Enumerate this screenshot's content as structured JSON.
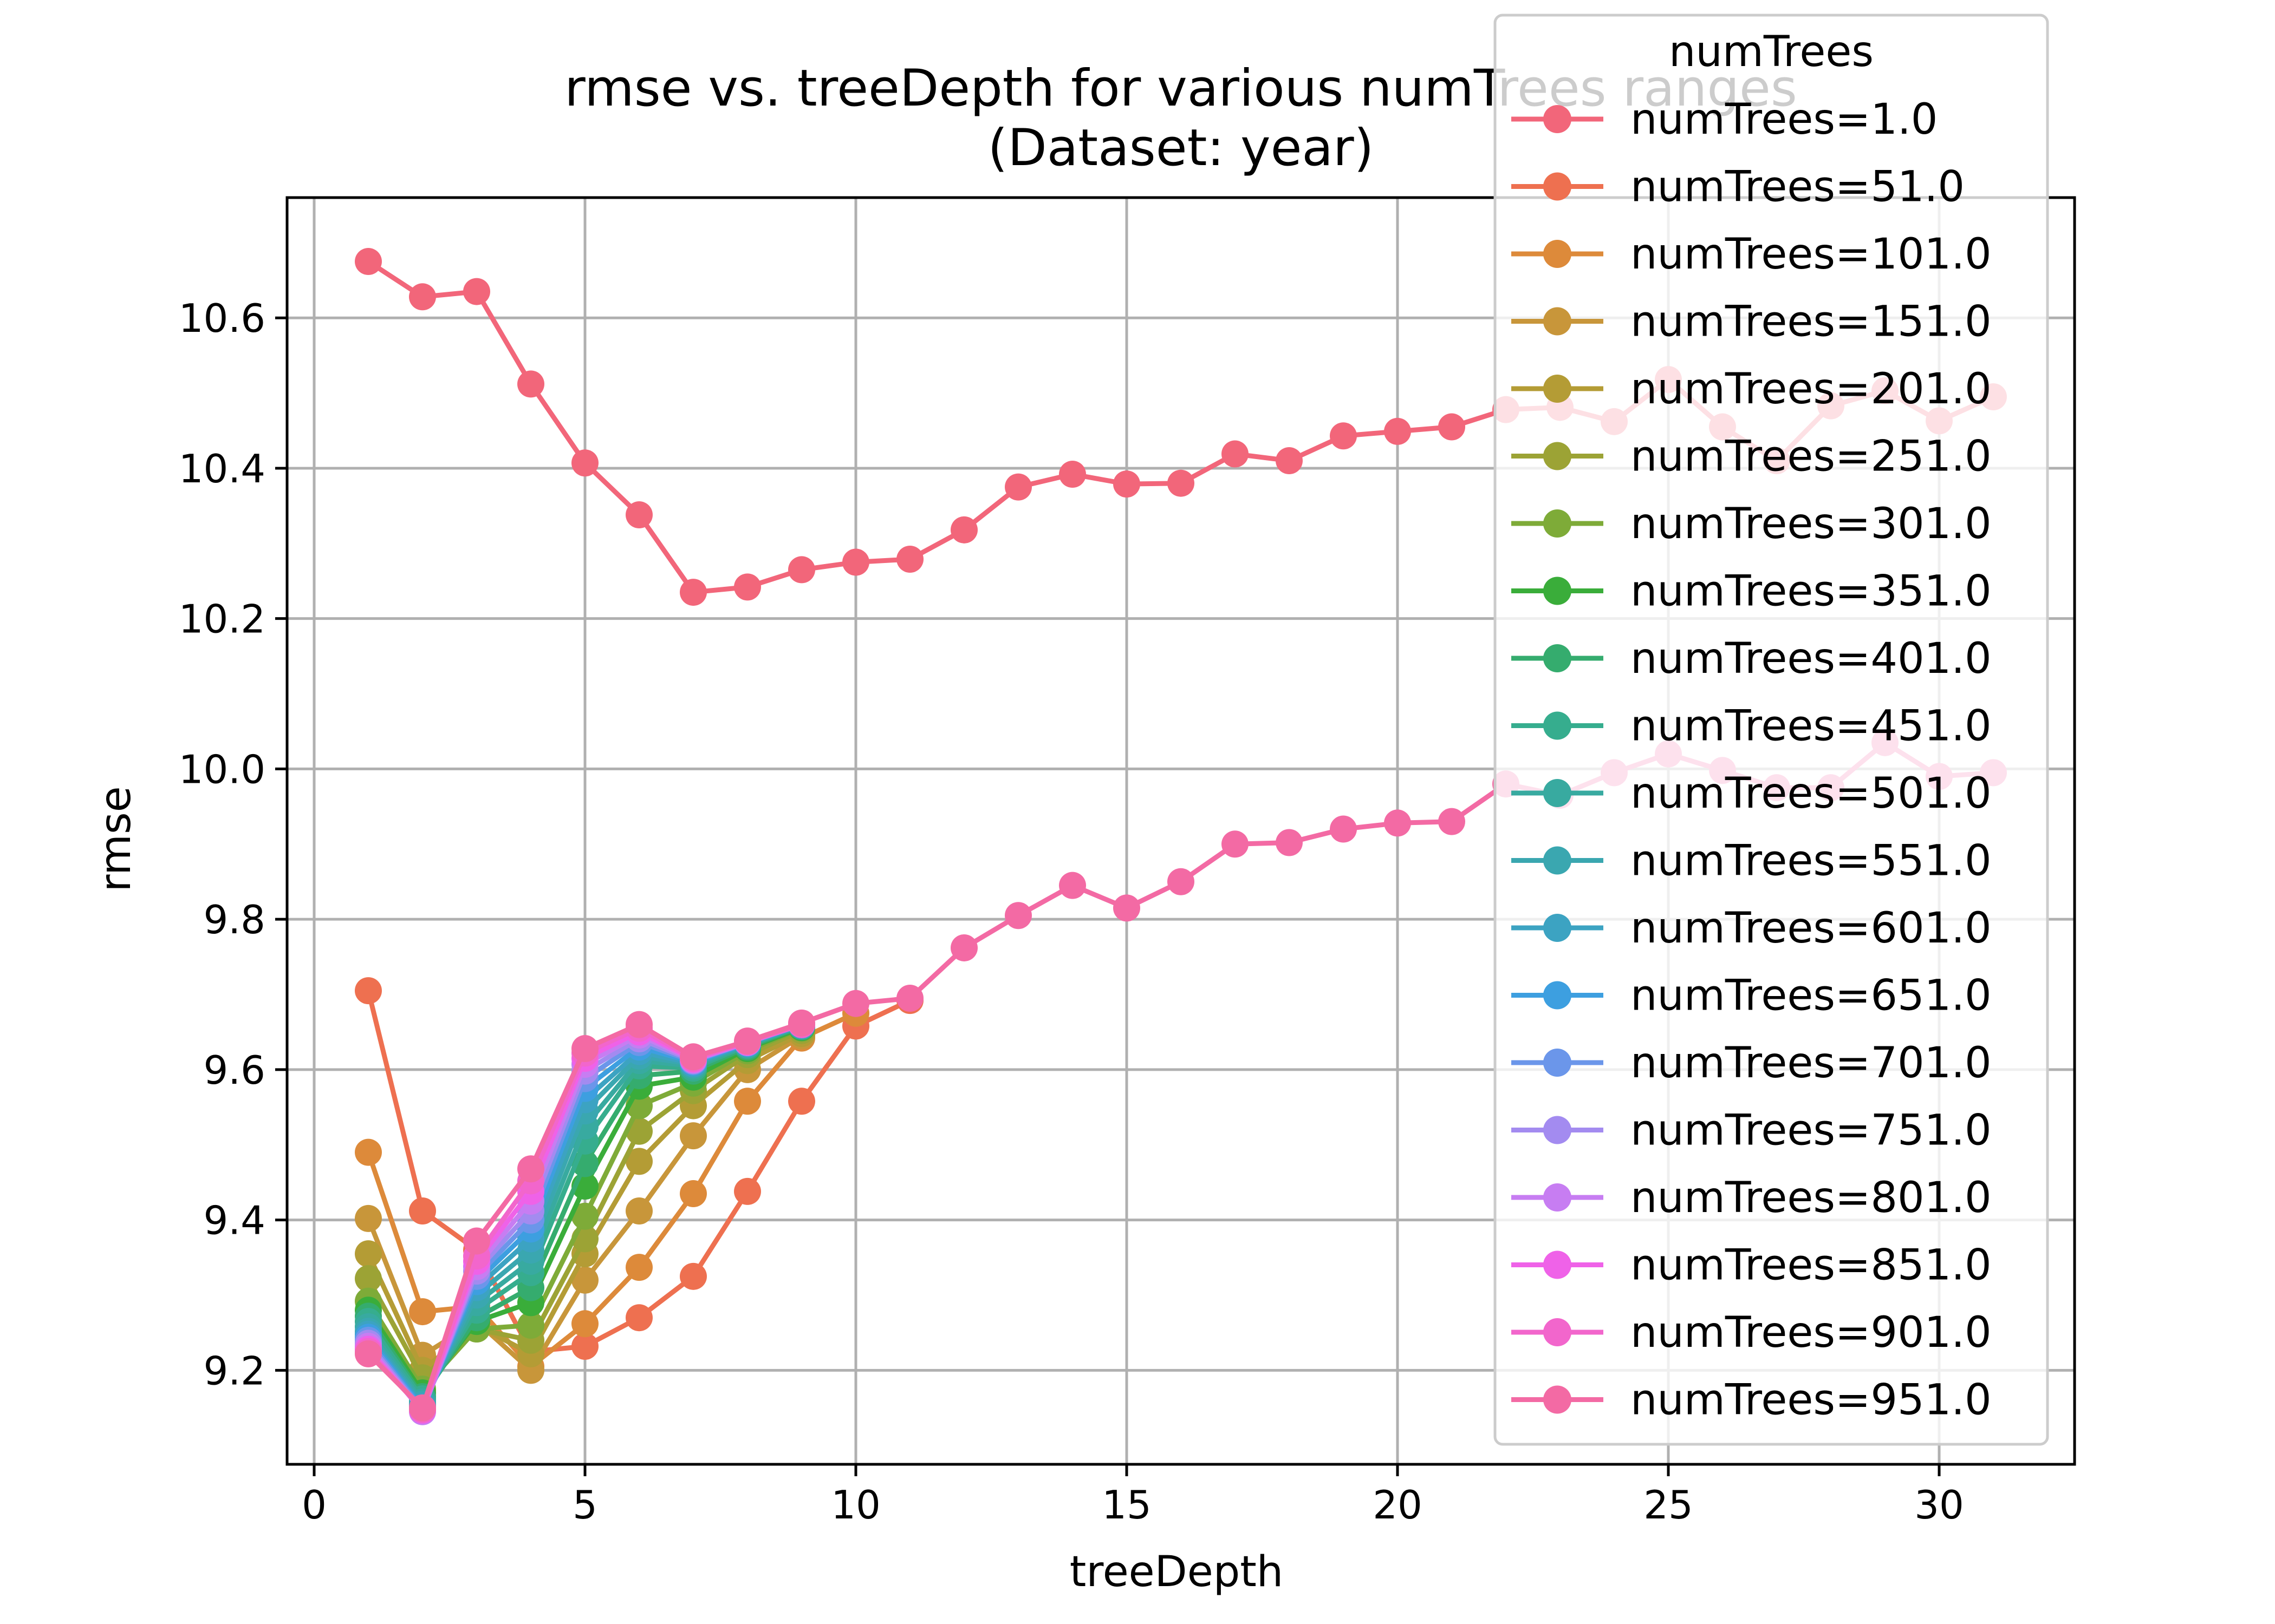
{
  "chart_data": {
    "type": "line",
    "title": "rmse vs. treeDepth for various numTrees ranges",
    "subtitle": "(Dataset: year)",
    "xlabel": "treeDepth",
    "ylabel": "rmse",
    "xlim": [
      -0.5,
      32.5
    ],
    "ylim": [
      9.075,
      10.76
    ],
    "xticks": [
      0,
      5,
      10,
      15,
      20,
      25,
      30
    ],
    "yticks": [
      9.2,
      9.4,
      9.6,
      9.8,
      10.0,
      10.2,
      10.4,
      10.6
    ],
    "ytick_labels": [
      "9.2",
      "9.4",
      "9.6",
      "9.8",
      "10.0",
      "10.2",
      "10.4",
      "10.6"
    ],
    "grid": true,
    "legend": {
      "title": "numTrees",
      "placement": "top-right"
    },
    "series": [
      {
        "name": "numTrees=1.0",
        "color": "#f2667a",
        "x": [
          1,
          2,
          3,
          4,
          5,
          6,
          7,
          8,
          9,
          10,
          11,
          12,
          13,
          14,
          15,
          16,
          17,
          18,
          19,
          20,
          21,
          22,
          23,
          24,
          25,
          26,
          27,
          28,
          29,
          30,
          31
        ],
        "y": [
          10.675,
          10.628,
          10.635,
          10.512,
          10.407,
          10.338,
          10.235,
          10.242,
          10.265,
          10.275,
          10.279,
          10.318,
          10.375,
          10.392,
          10.379,
          10.38,
          10.419,
          10.41,
          10.443,
          10.449,
          10.455,
          10.478,
          10.481,
          10.462,
          10.518,
          10.455,
          10.41,
          10.483,
          10.503,
          10.463,
          10.495
        ]
      },
      {
        "name": "numTrees=51.0",
        "color": "#ee7050",
        "x": [
          1,
          2,
          3,
          4,
          5,
          6,
          7,
          8,
          9,
          10,
          11
        ],
        "y": [
          9.705,
          9.412,
          9.36,
          9.225,
          9.232,
          9.27,
          9.325,
          9.438,
          9.558,
          9.658,
          9.692
        ]
      },
      {
        "name": "numTrees=101.0",
        "color": "#dd8a3a",
        "x": [
          1,
          2,
          3,
          4,
          5,
          6,
          7,
          8,
          9,
          10
        ],
        "y": [
          9.49,
          9.278,
          9.285,
          9.205,
          9.262,
          9.337,
          9.435,
          9.558,
          9.642,
          9.675
        ]
      },
      {
        "name": "numTrees=151.0",
        "color": "#c8963a",
        "x": [
          1,
          2,
          3,
          4,
          5,
          6,
          7,
          8,
          9
        ],
        "y": [
          9.402,
          9.22,
          9.265,
          9.2,
          9.32,
          9.412,
          9.512,
          9.6,
          9.645
        ]
      },
      {
        "name": "numTrees=201.0",
        "color": "#b49c35",
        "x": [
          1,
          2,
          3,
          4,
          5,
          6,
          7,
          8,
          9
        ],
        "y": [
          9.355,
          9.2,
          9.26,
          9.222,
          9.355,
          9.478,
          9.552,
          9.612,
          9.648
        ]
      },
      {
        "name": "numTrees=251.0",
        "color": "#9ca335",
        "x": [
          1,
          2,
          3,
          4,
          5,
          6,
          7,
          8,
          9
        ],
        "y": [
          9.322,
          9.19,
          9.255,
          9.24,
          9.375,
          9.518,
          9.572,
          9.62,
          9.652
        ]
      },
      {
        "name": "numTrees=301.0",
        "color": "#7eab38",
        "x": [
          1,
          2,
          3,
          4,
          5,
          6,
          7,
          8,
          9
        ],
        "y": [
          9.292,
          9.175,
          9.255,
          9.26,
          9.405,
          9.552,
          9.582,
          9.625,
          9.655
        ]
      },
      {
        "name": "numTrees=351.0",
        "color": "#3aad3a",
        "x": [
          1,
          2,
          3,
          4,
          5,
          6,
          7,
          8,
          9
        ],
        "y": [
          9.28,
          9.17,
          9.265,
          9.29,
          9.445,
          9.578,
          9.59,
          9.628,
          9.656
        ]
      },
      {
        "name": "numTrees=401.0",
        "color": "#35ac6e",
        "x": [
          1,
          2,
          3,
          4,
          5,
          6,
          7,
          8,
          9
        ],
        "y": [
          9.272,
          9.165,
          9.27,
          9.31,
          9.475,
          9.592,
          9.598,
          9.63,
          9.657
        ]
      },
      {
        "name": "numTrees=451.0",
        "color": "#36ad8e",
        "x": [
          1,
          2,
          3,
          4,
          5,
          6,
          7,
          8,
          9
        ],
        "y": [
          9.265,
          9.162,
          9.28,
          9.33,
          9.505,
          9.605,
          9.602,
          9.632,
          9.658
        ]
      },
      {
        "name": "numTrees=501.0",
        "color": "#38aaa0",
        "x": [
          1,
          2,
          3,
          4,
          5,
          6,
          7,
          8,
          9
        ],
        "y": [
          9.258,
          9.158,
          9.29,
          9.345,
          9.525,
          9.612,
          9.605,
          9.633,
          9.658
        ]
      },
      {
        "name": "numTrees=551.0",
        "color": "#3aa7b0",
        "x": [
          1,
          2,
          3,
          4,
          5,
          6,
          7,
          8,
          9
        ],
        "y": [
          9.252,
          9.155,
          9.3,
          9.36,
          9.545,
          9.618,
          9.607,
          9.634,
          9.659
        ]
      },
      {
        "name": "numTrees=601.0",
        "color": "#3ca3c2",
        "x": [
          1,
          2,
          3,
          4,
          5,
          6,
          7,
          8,
          9
        ],
        "y": [
          9.248,
          9.152,
          9.31,
          9.375,
          9.56,
          9.624,
          9.608,
          9.635,
          9.659
        ]
      },
      {
        "name": "numTrees=651.0",
        "color": "#3d9fe0",
        "x": [
          1,
          2,
          3,
          4,
          5,
          6,
          7,
          8,
          9
        ],
        "y": [
          9.244,
          9.15,
          9.318,
          9.388,
          9.575,
          9.63,
          9.61,
          9.635,
          9.66
        ]
      },
      {
        "name": "numTrees=701.0",
        "color": "#6b96ea",
        "x": [
          1,
          2,
          3,
          4,
          5,
          6,
          7,
          8,
          9
        ],
        "y": [
          9.24,
          9.148,
          9.325,
          9.4,
          9.588,
          9.636,
          9.611,
          9.636,
          9.66
        ]
      },
      {
        "name": "numTrees=751.0",
        "color": "#a38bf0",
        "x": [
          1,
          2,
          3,
          4,
          5,
          6,
          7,
          8,
          9
        ],
        "y": [
          9.236,
          9.146,
          9.332,
          9.412,
          9.598,
          9.641,
          9.612,
          9.636,
          9.66
        ]
      },
      {
        "name": "numTrees=801.0",
        "color": "#c77df2",
        "x": [
          1,
          2,
          3,
          4,
          5,
          6,
          7,
          8,
          9
        ],
        "y": [
          9.232,
          9.145,
          9.338,
          9.425,
          9.607,
          9.646,
          9.613,
          9.636,
          9.66
        ]
      },
      {
        "name": "numTrees=851.0",
        "color": "#ef62e8",
        "x": [
          1,
          2,
          3,
          4,
          5,
          6,
          7,
          8,
          9
        ],
        "y": [
          9.228,
          9.147,
          9.345,
          9.438,
          9.615,
          9.65,
          9.614,
          9.637,
          9.66
        ]
      },
      {
        "name": "numTrees=901.0",
        "color": "#f266cc",
        "x": [
          1,
          2,
          3,
          4,
          5,
          6,
          7,
          8,
          9
        ],
        "y": [
          9.225,
          9.148,
          9.352,
          9.452,
          9.622,
          9.655,
          9.615,
          9.637,
          9.66
        ]
      },
      {
        "name": "numTrees=951.0",
        "color": "#f36aa4",
        "x": [
          1,
          2,
          3,
          4,
          5,
          6,
          7,
          8,
          9,
          10,
          11,
          12,
          13,
          14,
          15,
          16,
          17,
          18,
          19,
          20,
          21,
          22,
          23,
          24,
          25,
          26,
          27,
          28,
          29,
          30,
          31
        ],
        "y": [
          9.222,
          9.15,
          9.372,
          9.468,
          9.628,
          9.66,
          9.617,
          9.638,
          9.662,
          9.688,
          9.695,
          9.762,
          9.805,
          9.845,
          9.815,
          9.85,
          9.9,
          9.902,
          9.92,
          9.928,
          9.93,
          9.98,
          9.965,
          9.995,
          10.02,
          9.998,
          9.975,
          9.975,
          10.035,
          9.99,
          9.995
        ]
      }
    ]
  }
}
